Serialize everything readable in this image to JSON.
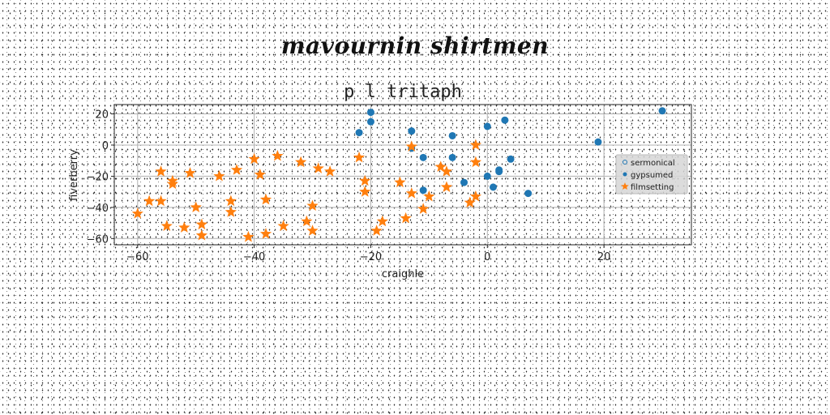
{
  "page": {
    "heading": "mavournin shirtmen"
  },
  "chart_data": {
    "type": "scatter",
    "title": "p l tritaph",
    "xlabel": "craighle",
    "ylabel": "fiverberry",
    "xlim": [
      -64,
      35
    ],
    "ylim": [
      -64,
      26
    ],
    "xticks": [
      -60,
      -40,
      -20,
      0,
      20
    ],
    "yticks": [
      -60,
      -40,
      -20,
      0,
      20
    ],
    "grid": true,
    "legend_position": "right",
    "legend": [
      "sermonical",
      "gypsumed",
      "filmsetting"
    ],
    "series": [
      {
        "name": "sermonical",
        "marker": "circle",
        "color": "#1f77b4",
        "points": []
      },
      {
        "name": "gypsumed",
        "marker": "circle",
        "color": "#1f77b4",
        "points": [
          [
            -20,
            21
          ],
          [
            -20,
            15
          ],
          [
            -22,
            8
          ],
          [
            -13,
            9
          ],
          [
            -13,
            -2
          ],
          [
            -11,
            -8
          ],
          [
            -6,
            6
          ],
          [
            -6,
            -8
          ],
          [
            0,
            12
          ],
          [
            3,
            16
          ],
          [
            30,
            22
          ],
          [
            19,
            2
          ],
          [
            4,
            -9
          ],
          [
            2,
            -16
          ],
          [
            2,
            -17
          ],
          [
            0,
            -20
          ],
          [
            1,
            -27
          ],
          [
            -4,
            -24
          ],
          [
            -11,
            -29
          ],
          [
            7,
            -31
          ]
        ]
      },
      {
        "name": "filmsetting",
        "marker": "star",
        "color": "#ff7f0e",
        "points": [
          [
            -60,
            -44
          ],
          [
            -58,
            -36
          ],
          [
            -56,
            -36
          ],
          [
            -56,
            -17
          ],
          [
            -55,
            -52
          ],
          [
            -54,
            -23
          ],
          [
            -54,
            -25
          ],
          [
            -51,
            -18
          ],
          [
            -52,
            -53
          ],
          [
            -50,
            -40
          ],
          [
            -49,
            -51
          ],
          [
            -49,
            -58
          ],
          [
            -46,
            -20
          ],
          [
            -44,
            -36
          ],
          [
            -44,
            -43
          ],
          [
            -43,
            -16
          ],
          [
            -41,
            -59
          ],
          [
            -40,
            -9
          ],
          [
            -39,
            -19
          ],
          [
            -38,
            -35
          ],
          [
            -38,
            -57
          ],
          [
            -36,
            -7
          ],
          [
            -35,
            -52
          ],
          [
            -32,
            -11
          ],
          [
            -31,
            -49
          ],
          [
            -30,
            -55
          ],
          [
            -30,
            -39
          ],
          [
            -29,
            -15
          ],
          [
            -27,
            -17
          ],
          [
            -22,
            -8
          ],
          [
            -21,
            -23
          ],
          [
            -21,
            -30
          ],
          [
            -19,
            -55
          ],
          [
            -18,
            -49
          ],
          [
            -15,
            -24
          ],
          [
            -14,
            -47
          ],
          [
            -13,
            -31
          ],
          [
            -13,
            -1
          ],
          [
            -11,
            -41
          ],
          [
            -10,
            -33
          ],
          [
            -8,
            -14
          ],
          [
            -7,
            -27
          ],
          [
            -7,
            -17
          ],
          [
            -3,
            -37
          ],
          [
            -2,
            -33
          ],
          [
            -2,
            -11
          ],
          [
            -2,
            0
          ]
        ]
      }
    ]
  }
}
